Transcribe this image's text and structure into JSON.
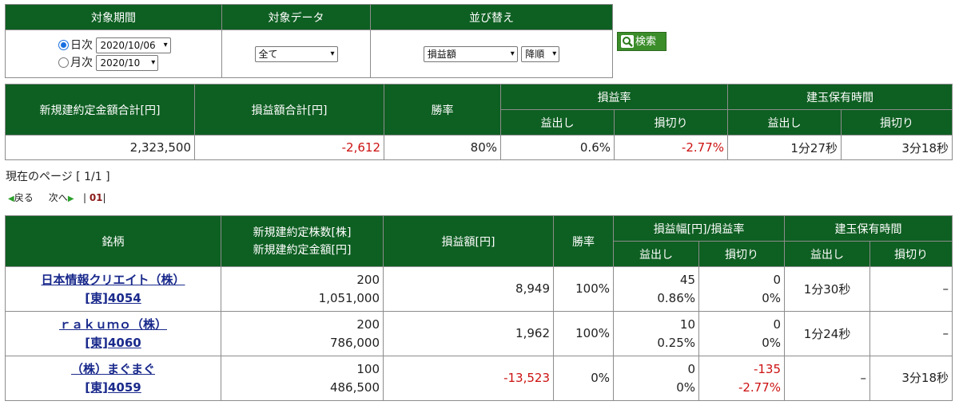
{
  "search": {
    "headers": [
      "対象期間",
      "対象データ",
      "並び替え"
    ],
    "period": {
      "daily_label": "日次",
      "daily_value": "2020/10/06",
      "monthly_label": "月次",
      "monthly_value": "2020/10"
    },
    "data_filter": "全て",
    "sort_field": "損益額",
    "sort_order": "降順",
    "button_label": "検索"
  },
  "summary": {
    "headers": {
      "new_amount_total": "新規建約定金額合計[円]",
      "pl_total": "損益額合計[円]",
      "win_rate": "勝率",
      "pl_rate": "損益率",
      "hold_time": "建玉保有時間",
      "profit": "益出し",
      "loss": "損切り"
    },
    "values": {
      "new_amount_total": "2,323,500",
      "pl_total": "-2,612",
      "win_rate": "80%",
      "pl_rate_profit": "0.6%",
      "pl_rate_loss": "-2.77%",
      "hold_profit": "1分27秒",
      "hold_loss": "3分18秒"
    }
  },
  "pager": {
    "current": "現在のページ [ 1/1 ]",
    "back": "戻る",
    "next": "次へ",
    "page": "01"
  },
  "detail": {
    "headers": {
      "stock": "銘柄",
      "new_shares": "新規建約定株数[株]",
      "new_amount": "新規建約定金額[円]",
      "pl_amount": "損益額[円]",
      "win_rate": "勝率",
      "pl_width_rate": "損益幅[円]/損益率",
      "hold_time": "建玉保有時間",
      "profit": "益出し",
      "loss": "損切り"
    },
    "rows": [
      {
        "name": "日本情報クリエイト（株）",
        "code": "[東]4054",
        "shares": "200",
        "amount": "1,051,000",
        "pl": "8,949",
        "win_rate": "100%",
        "profit_width": "45",
        "profit_rate": "0.86%",
        "loss_width": "0",
        "loss_rate": "0%",
        "hold_profit": "1分30秒",
        "hold_loss": "–"
      },
      {
        "name": "ｒａｋｕｍｏ（株）",
        "code": "[東]4060",
        "shares": "200",
        "amount": "786,000",
        "pl": "1,962",
        "win_rate": "100%",
        "profit_width": "10",
        "profit_rate": "0.25%",
        "loss_width": "0",
        "loss_rate": "0%",
        "hold_profit": "1分24秒",
        "hold_loss": "–"
      },
      {
        "name": "（株）まぐまぐ",
        "code": "[東]4059",
        "shares": "100",
        "amount": "486,500",
        "pl": "-13,523",
        "win_rate": "0%",
        "profit_width": "0",
        "profit_rate": "0%",
        "loss_width": "-135",
        "loss_rate": "-2.77%",
        "hold_profit": "–",
        "hold_loss": "3分18秒"
      }
    ]
  },
  "colors": {
    "header_green": "#0e5f22",
    "negative_red": "#cc1111",
    "link_blue": "#1a2a8c"
  }
}
